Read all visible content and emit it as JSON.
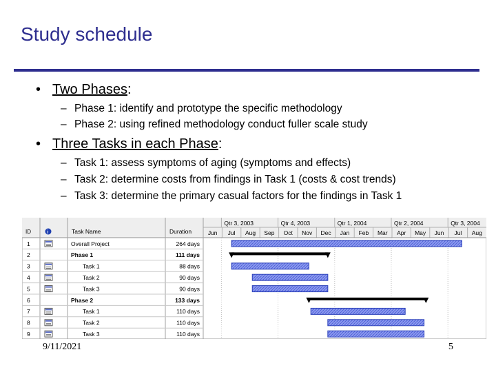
{
  "slide": {
    "title": "Study schedule",
    "bullets": [
      {
        "label": "Two Phases",
        "suffix": ":",
        "subs": [
          "Phase 1: identify and prototype the specific methodology",
          "Phase 2: using refined methodology conduct fuller scale study"
        ]
      },
      {
        "label": "Three Tasks in each Phase",
        "suffix": ":",
        "subs": [
          "Task 1: assess symptoms of aging (symptoms and effects)",
          "Task 2: determine costs from findings in Task 1 (costs & cost trends)",
          "Task 3: determine the primary casual factors for the findings in Task 1"
        ]
      }
    ],
    "bullet_char": "•",
    "dash_char": "–",
    "footer_date": "9/11/2021",
    "page_number": "5"
  },
  "gantt": {
    "columns": {
      "id": "ID",
      "info": "i",
      "task_name": "Task Name",
      "duration": "Duration"
    },
    "quarters": [
      "Qtr 3, 2003",
      "Qtr 4, 2003",
      "Qtr 1, 2004",
      "Qtr 2, 2004",
      "Qtr 3, 2004"
    ],
    "months": [
      "Jun",
      "Jul",
      "Aug",
      "Sep",
      "Oct",
      "Nov",
      "Dec",
      "Jan",
      "Feb",
      "Mar",
      "Apr",
      "May",
      "Jun",
      "Jul",
      "Aug"
    ],
    "rows": [
      {
        "id": "1",
        "name": "Overall Project",
        "duration": "264 days",
        "summary": false,
        "indent": 0,
        "has_icon": true,
        "start_month": 1.5,
        "end_month": 13.7,
        "bar": "blue"
      },
      {
        "id": "2",
        "name": "Phase 1",
        "duration": "111 days",
        "summary": true,
        "indent": 0,
        "has_icon": false,
        "start_month": 1.5,
        "end_month": 6.6,
        "bar": "summary"
      },
      {
        "id": "3",
        "name": "Task 1",
        "duration": "88 days",
        "summary": false,
        "indent": 1,
        "has_icon": true,
        "start_month": 1.5,
        "end_month": 5.6,
        "bar": "blue"
      },
      {
        "id": "4",
        "name": "Task 2",
        "duration": "90 days",
        "summary": false,
        "indent": 1,
        "has_icon": true,
        "start_month": 2.6,
        "end_month": 6.6,
        "bar": "blue"
      },
      {
        "id": "5",
        "name": "Task 3",
        "duration": "90 days",
        "summary": false,
        "indent": 1,
        "has_icon": true,
        "start_month": 2.6,
        "end_month": 6.6,
        "bar": "blue"
      },
      {
        "id": "6",
        "name": "Phase 2",
        "duration": "133 days",
        "summary": true,
        "indent": 0,
        "has_icon": false,
        "start_month": 5.6,
        "end_month": 11.8,
        "bar": "summary"
      },
      {
        "id": "7",
        "name": "Task 1",
        "duration": "110 days",
        "summary": false,
        "indent": 1,
        "has_icon": true,
        "start_month": 5.7,
        "end_month": 10.7,
        "bar": "blue"
      },
      {
        "id": "8",
        "name": "Task 2",
        "duration": "110 days",
        "summary": false,
        "indent": 1,
        "has_icon": true,
        "start_month": 6.6,
        "end_month": 11.7,
        "bar": "blue"
      },
      {
        "id": "9",
        "name": "Task 3",
        "duration": "110 days",
        "summary": false,
        "indent": 1,
        "has_icon": true,
        "start_month": 6.6,
        "end_month": 11.7,
        "bar": "blue"
      }
    ]
  }
}
